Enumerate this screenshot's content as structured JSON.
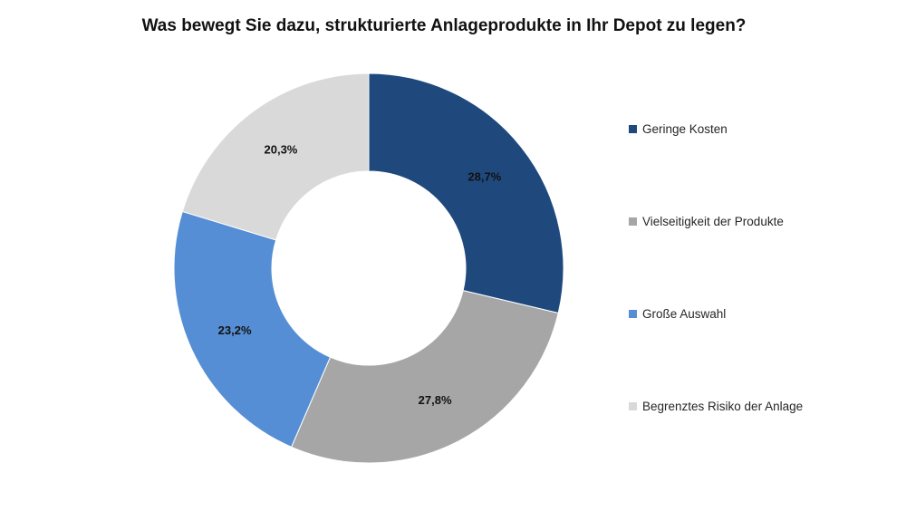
{
  "chart_data": {
    "type": "pie",
    "variant": "donut",
    "title": "Was bewegt Sie dazu, strukturierte Anlageprodukte in Ihr Depot zu legen?",
    "categories": [
      "Geringe Kosten",
      "Vielseitigkeit der Produkte",
      "Große Auswahl",
      "Begrenztes Risiko der Anlage"
    ],
    "values": [
      28.7,
      27.8,
      23.2,
      20.3
    ],
    "data_labels": [
      "28,7%",
      "27,8%",
      "23,2%",
      "20,3%"
    ],
    "colors": [
      "#1f497d",
      "#a6a6a6",
      "#558ed5",
      "#d9d9d9"
    ],
    "legend_position": "right",
    "start_angle": "12 o'clock",
    "direction": "clockwise"
  }
}
